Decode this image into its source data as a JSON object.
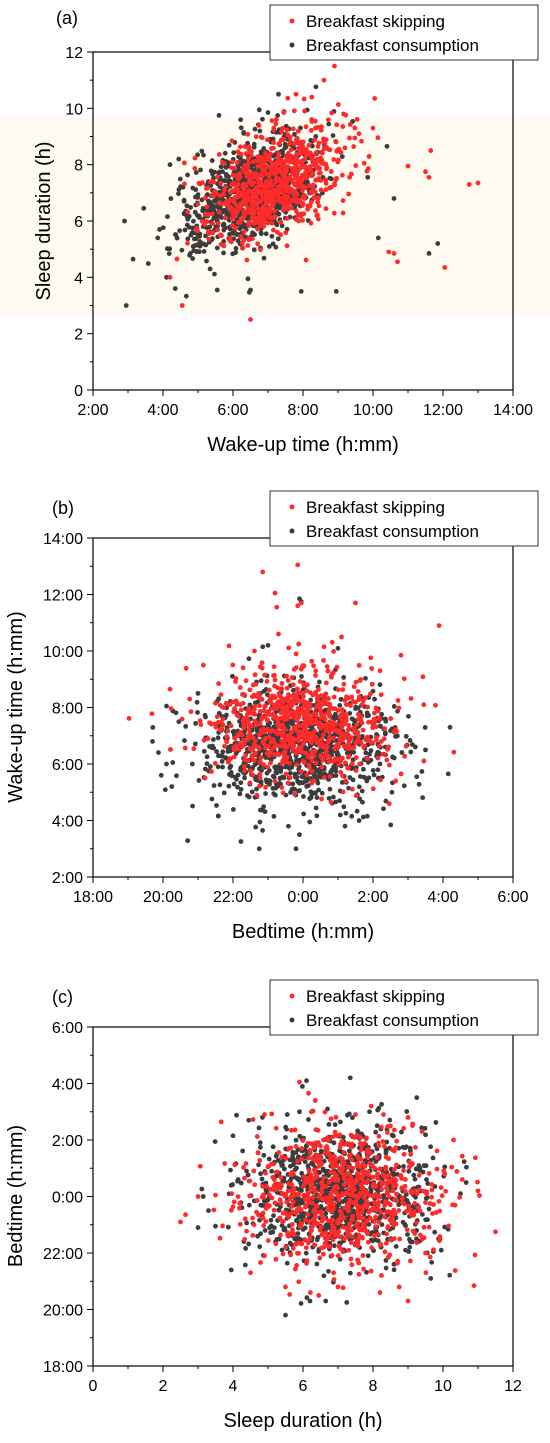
{
  "legend_labels": [
    "Breakfast skipping",
    "Breakfast consumption"
  ],
  "colors": {
    "skipping": "#ff2a2a",
    "consumption": "#3c3c3c",
    "band": "#fffbf0"
  },
  "chart_data": [
    {
      "type": "scatter",
      "panel_label": "(a)",
      "xlabel": "Wake-up time (h:mm)",
      "ylabel": "Sleep duration (h)",
      "xlim": [
        2,
        14
      ],
      "ylim": [
        0,
        12
      ],
      "x_units": "hours (clock time)",
      "x_ticks": [
        2,
        4,
        6,
        8,
        10,
        12,
        14
      ],
      "x_tick_labels": [
        "2:00",
        "4:00",
        "6:00",
        "8:00",
        "10:00",
        "12:00",
        "14:00"
      ],
      "y_ticks": [
        0,
        2,
        4,
        6,
        8,
        10,
        12
      ],
      "y_tick_labels": [
        "0",
        "2",
        "4",
        "6",
        "8",
        "10",
        "12"
      ],
      "legend": "top-right",
      "grid": false,
      "series": [
        {
          "name": "Breakfast skipping",
          "color": "#ff2a2a",
          "points": [
            [
              8.9,
              11.5
            ],
            [
              8.6,
              11.0
            ],
            [
              10.05,
              10.35
            ],
            [
              11.0,
              7.95
            ],
            [
              11.65,
              8.5
            ],
            [
              11.5,
              7.75
            ],
            [
              11.6,
              7.55
            ],
            [
              12.75,
              7.3
            ],
            [
              13.0,
              7.35
            ],
            [
              12.05,
              4.35
            ],
            [
              10.45,
              4.9
            ],
            [
              10.6,
              4.85
            ],
            [
              10.7,
              4.55
            ],
            [
              6.5,
              2.5
            ],
            [
              4.55,
              3.0
            ],
            [
              4.2,
              4.0
            ],
            [
              4.4,
              4.65
            ],
            [
              9.2,
              8.6
            ],
            [
              9.6,
              9.1
            ],
            [
              9.75,
              8.05
            ],
            [
              10.0,
              9.3
            ],
            [
              8.25,
              10.4
            ],
            [
              7.8,
              10.5
            ],
            [
              7.45,
              9.85
            ]
          ]
        },
        {
          "name": "Breakfast consumption",
          "color": "#3c3c3c",
          "points": [
            [
              2.9,
              6.0
            ],
            [
              2.95,
              3.0
            ],
            [
              3.45,
              6.45
            ],
            [
              3.85,
              5.4
            ],
            [
              3.9,
              5.7
            ],
            [
              4.1,
              4.0
            ],
            [
              4.35,
              3.6
            ],
            [
              4.2,
              8.0
            ],
            [
              4.45,
              8.2
            ],
            [
              5.6,
              9.75
            ],
            [
              6.5,
              3.55
            ],
            [
              5.55,
              3.55
            ],
            [
              7.3,
              10.5
            ],
            [
              7.95,
              3.5
            ],
            [
              8.95,
              3.5
            ],
            [
              10.15,
              5.4
            ],
            [
              11.6,
              4.85
            ],
            [
              11.85,
              5.2
            ],
            [
              10.6,
              6.8
            ],
            [
              10.4,
              8.65
            ],
            [
              9.85,
              7.55
            ],
            [
              6.75,
              9.95
            ],
            [
              7.0,
              9.85
            ]
          ]
        }
      ]
    },
    {
      "type": "scatter",
      "panel_label": "(b)",
      "xlabel": "Bedtime (h:mm)",
      "ylabel": "Wake-up time (h:mm)",
      "xlim": [
        18,
        30
      ],
      "ylim": [
        2,
        14
      ],
      "x_units": "clock hours, past midnight counted as 24+",
      "x_ticks": [
        18,
        20,
        22,
        24,
        26,
        28,
        30
      ],
      "x_tick_labels": [
        "18:00",
        "20:00",
        "22:00",
        "0:00",
        "2:00",
        "4:00",
        "6:00"
      ],
      "y_ticks": [
        2,
        4,
        6,
        8,
        10,
        12,
        14
      ],
      "y_tick_labels": [
        "2:00",
        "4:00",
        "6:00",
        "8:00",
        "10:00",
        "12:00",
        "14:00"
      ],
      "legend": "top-right",
      "grid": false,
      "series": [
        {
          "name": "Breakfast skipping",
          "color": "#ff2a2a",
          "points": [
            [
              22.85,
              12.8
            ],
            [
              23.85,
              13.05
            ],
            [
              23.2,
              12.05
            ],
            [
              23.25,
              11.55
            ],
            [
              23.95,
              11.7
            ],
            [
              23.85,
              11.6
            ],
            [
              25.5,
              11.7
            ],
            [
              27.45,
              8.1
            ],
            [
              26.8,
              9.85
            ],
            [
              20.2,
              8.65
            ],
            [
              20.8,
              7.85
            ],
            [
              21.2,
              5.5
            ],
            [
              25.1,
              10.5
            ],
            [
              24.6,
              10.15
            ],
            [
              26.2,
              9.3
            ],
            [
              23.3,
              10.6
            ],
            [
              24.8,
              4.65
            ],
            [
              26.65,
              5.4
            ]
          ]
        },
        {
          "name": "Breakfast consumption",
          "color": "#3c3c3c",
          "points": [
            [
              19.7,
              6.8
            ],
            [
              20.1,
              8.05
            ],
            [
              20.1,
              6.0
            ],
            [
              19.95,
              5.6
            ],
            [
              20.25,
              5.2
            ],
            [
              28.2,
              7.3
            ],
            [
              28.15,
              5.65
            ],
            [
              27.5,
              6.5
            ],
            [
              22.75,
              3.0
            ],
            [
              23.8,
              3.0
            ],
            [
              23.9,
              3.5
            ],
            [
              23.9,
              11.85
            ],
            [
              23.95,
              11.75
            ],
            [
              23.0,
              10.2
            ],
            [
              22.85,
              10.15
            ],
            [
              21.0,
              8.5
            ],
            [
              25.2,
              3.8
            ],
            [
              27.25,
              5.55
            ]
          ]
        }
      ]
    },
    {
      "type": "scatter",
      "panel_label": "(c)",
      "xlabel": "Sleep duration (h)",
      "ylabel": "Bedtime (h:mm)",
      "xlim": [
        0,
        12
      ],
      "ylim": [
        18,
        30
      ],
      "y_units": "clock hours, past midnight counted as 24+",
      "x_ticks": [
        0,
        2,
        4,
        6,
        8,
        10,
        12
      ],
      "x_tick_labels": [
        "0",
        "2",
        "4",
        "6",
        "8",
        "10",
        "12"
      ],
      "y_ticks": [
        18,
        20,
        22,
        24,
        26,
        28,
        30
      ],
      "y_tick_labels": [
        "18:00",
        "20:00",
        "22:00",
        "0:00",
        "2:00",
        "4:00",
        "6:00"
      ],
      "legend": "top-right",
      "grid": false,
      "series": [
        {
          "name": "Breakfast skipping",
          "color": "#ff2a2a",
          "points": [
            [
              2.5,
              23.1
            ],
            [
              3.0,
              24.0
            ],
            [
              3.5,
              24.05
            ],
            [
              11.5,
              22.75
            ],
            [
              11.0,
              24.2
            ],
            [
              10.3,
              26.0
            ],
            [
              10.55,
              24.6
            ],
            [
              9.0,
              20.3
            ],
            [
              9.5,
              22.0
            ],
            [
              4.5,
              21.3
            ],
            [
              4.9,
              21.9
            ],
            [
              5.5,
              20.8
            ],
            [
              8.2,
              20.6
            ],
            [
              8.75,
              20.8
            ],
            [
              4.9,
              26.9
            ],
            [
              6.35,
              27.4
            ],
            [
              6.8,
              26.75
            ],
            [
              7.5,
              26.9
            ],
            [
              8.3,
              26.9
            ],
            [
              9.0,
              26.8
            ],
            [
              9.4,
              26.3
            ],
            [
              7.95,
              27.2
            ],
            [
              8.5,
              26.5
            ],
            [
              10.05,
              24.8
            ],
            [
              6.45,
              20.5
            ],
            [
              7.0,
              20.8
            ]
          ]
        },
        {
          "name": "Breakfast consumption",
          "color": "#3c3c3c",
          "points": [
            [
              3.0,
              22.9
            ],
            [
              3.5,
              22.95
            ],
            [
              3.95,
              21.4
            ],
            [
              5.5,
              19.8
            ],
            [
              6.2,
              20.3
            ],
            [
              6.65,
              20.3
            ],
            [
              7.25,
              20.25
            ],
            [
              6.1,
              28.1
            ],
            [
              7.35,
              28.2
            ],
            [
              9.25,
              27.5
            ],
            [
              9.65,
              21.1
            ],
            [
              9.95,
              22.1
            ],
            [
              10.5,
              24.1
            ],
            [
              10.05,
              25.05
            ],
            [
              3.15,
              24.0
            ],
            [
              4.0,
              26.15
            ],
            [
              4.45,
              26.7
            ],
            [
              5.55,
              26.9
            ],
            [
              5.9,
              27.0
            ],
            [
              6.7,
              27.1
            ],
            [
              7.9,
              27.0
            ],
            [
              3.3,
              23.5
            ],
            [
              4.15,
              24.6
            ],
            [
              8.6,
              21.6
            ]
          ]
        }
      ]
    }
  ]
}
